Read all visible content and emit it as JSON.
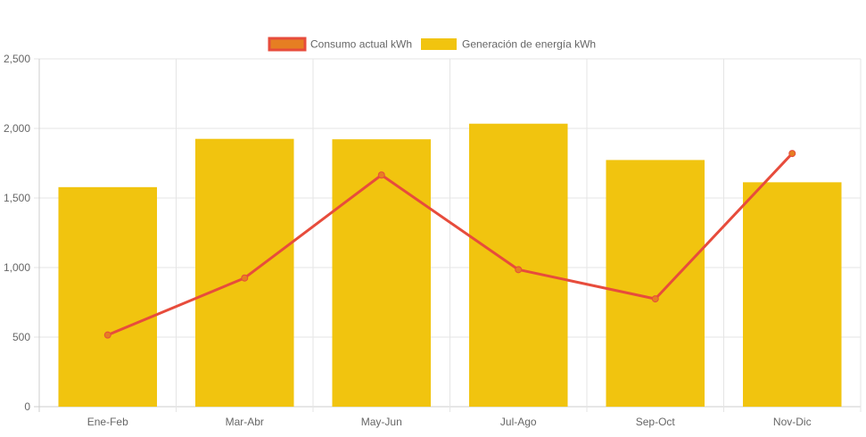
{
  "chart_data": {
    "type": "bar",
    "categories": [
      "Ene-Feb",
      "Mar-Abr",
      "May-Jun",
      "Jul-Ago",
      "Sep-Oct",
      "Nov-Dic"
    ],
    "series": [
      {
        "name": "Consumo actual kWh",
        "type": "line",
        "values": [
          515,
          925,
          1665,
          985,
          775,
          1820
        ],
        "color": "#e74c3c",
        "point_color": "#e67e22"
      },
      {
        "name": "Generación de energía kWh",
        "type": "bar",
        "values": [
          1578,
          1925,
          1922,
          2034,
          1773,
          1613
        ],
        "color": "#f1c40f"
      }
    ],
    "ylim": [
      0,
      2500
    ],
    "yticks": [
      0,
      500,
      1000,
      1500,
      2000,
      2500
    ],
    "ytick_labels": [
      "0",
      "500",
      "1,000",
      "1,500",
      "2,000",
      "2,500"
    ],
    "grid": true,
    "legend_position": "top-center"
  }
}
